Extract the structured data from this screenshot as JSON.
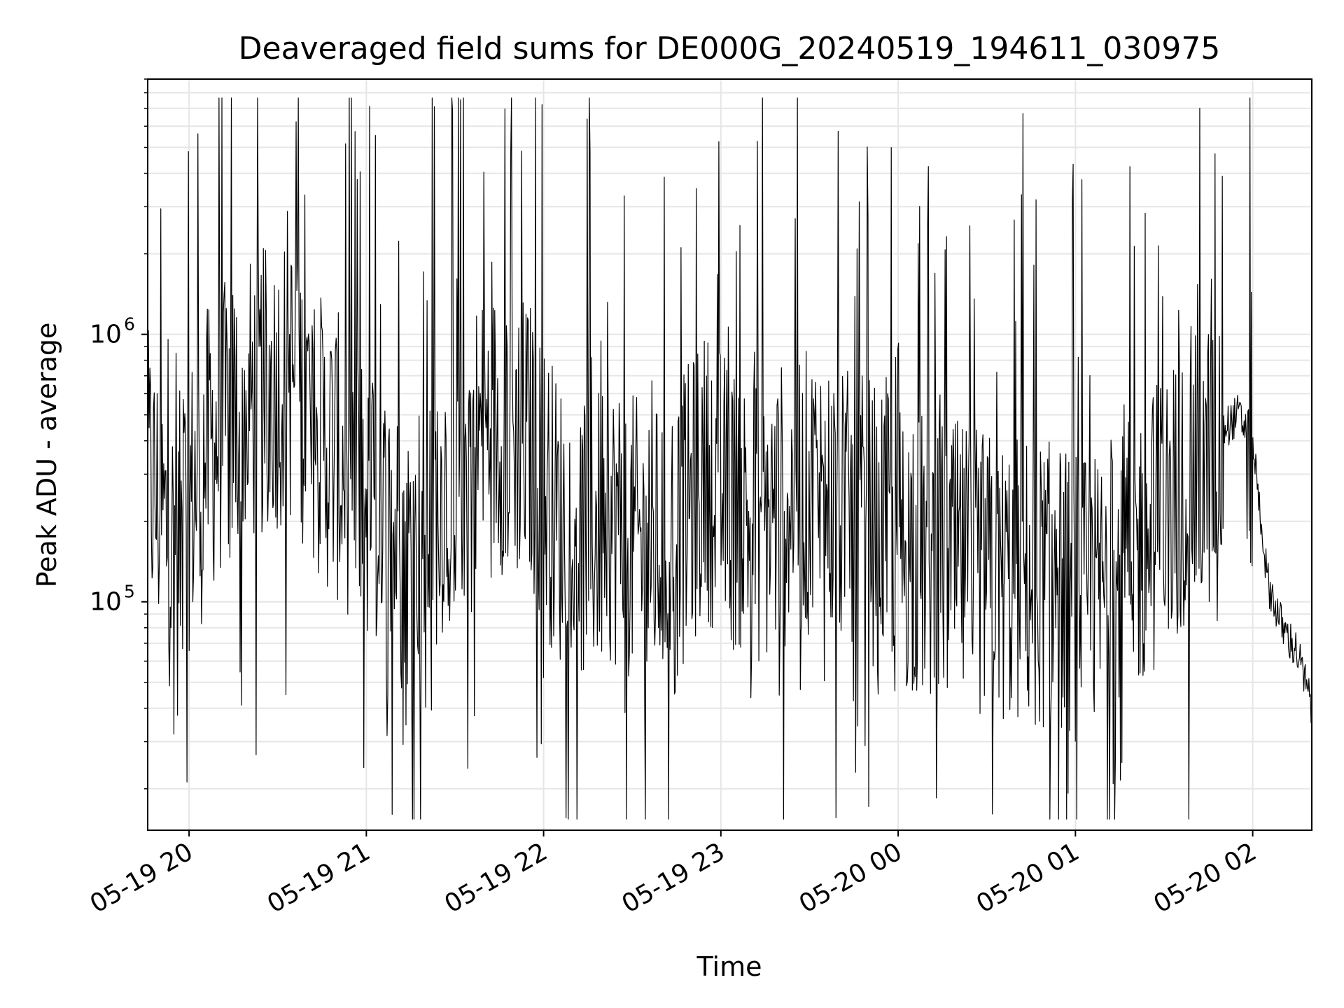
{
  "chart_data": {
    "type": "line",
    "title": "Deaveraged field sums for DE000G_20240519_194611_030975",
    "xlabel": "Time",
    "ylabel": "Peak ADU - average",
    "y_scale": "log",
    "x_range": [
      "05-19 19:46",
      "05-20 02:20"
    ],
    "ylim": [
      14000,
      9000000
    ],
    "grid": true,
    "x_ticks": [
      "05-19 20",
      "05-19 21",
      "05-19 22",
      "05-19 23",
      "05-20 00",
      "05-20 01",
      "05-20 02"
    ],
    "y_ticks": [
      {
        "base": "10",
        "exp": "5",
        "value": 100000
      },
      {
        "base": "10",
        "exp": "6",
        "value": 1000000
      }
    ],
    "line_color": "#000000",
    "series": [
      {
        "x": [
          "05-19 19:46",
          "05-19 19:55",
          "05-19 20:05",
          "05-19 20:15",
          "05-19 20:25",
          "05-19 20:35",
          "05-19 20:45",
          "05-19 20:55",
          "05-19 21:05",
          "05-19 21:15",
          "05-19 21:25",
          "05-19 21:35",
          "05-19 21:45",
          "05-19 21:55",
          "05-19 22:05",
          "05-19 22:15",
          "05-19 22:25",
          "05-19 22:35",
          "05-19 22:45",
          "05-19 22:55",
          "05-19 23:05",
          "05-19 23:15",
          "05-19 23:25",
          "05-19 23:35",
          "05-19 23:45",
          "05-19 23:55",
          "05-20 00:05",
          "05-20 00:15",
          "05-20 00:25",
          "05-20 00:35",
          "05-20 00:45",
          "05-20 00:55",
          "05-20 01:05",
          "05-20 01:15",
          "05-20 01:25",
          "05-20 01:35",
          "05-20 01:45",
          "05-20 01:50",
          "05-20 01:55",
          "05-20 02:00",
          "05-20 02:05",
          "05-20 02:10",
          "05-20 02:15",
          "05-20 02:20"
        ],
        "values": [
          300000,
          150000,
          350000,
          500000,
          600000,
          700000,
          400000,
          300000,
          200000,
          150000,
          250000,
          400000,
          450000,
          400000,
          200000,
          180000,
          200000,
          150000,
          180000,
          300000,
          220000,
          200000,
          250000,
          250000,
          200000,
          200000,
          150000,
          140000,
          130000,
          120000,
          120000,
          110000,
          100000,
          120000,
          180000,
          250000,
          320000,
          440000,
          500000,
          400000,
          120000,
          80000,
          65000,
          40000
        ]
      }
    ]
  }
}
